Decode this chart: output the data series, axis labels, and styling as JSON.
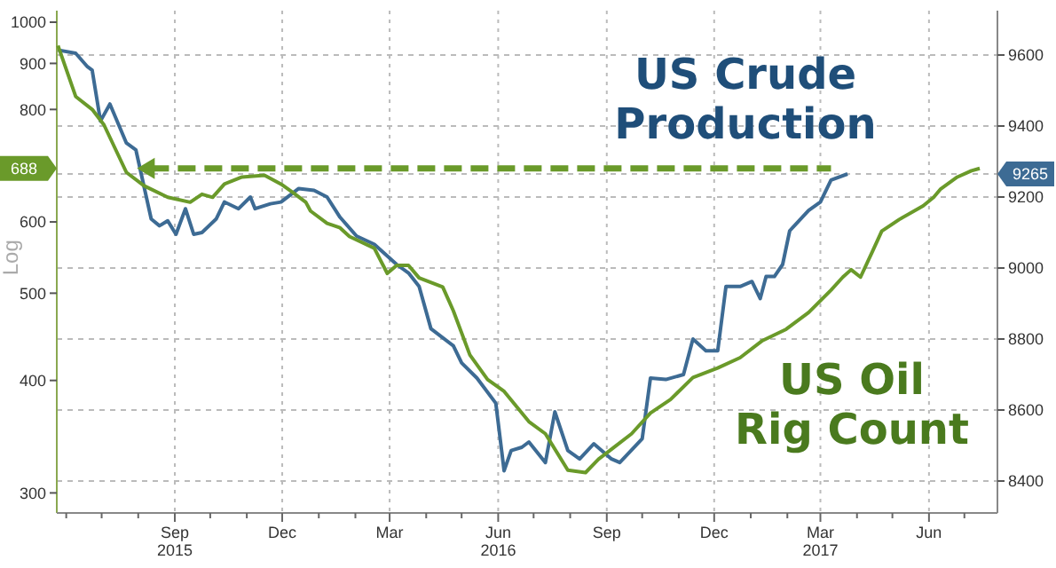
{
  "chart_data": {
    "type": "line",
    "log": "y",
    "grid": true,
    "ylabel": "Log",
    "xlim": [
      "2015-05-24",
      "2017-07-29"
    ],
    "ylim": [
      285,
      1030
    ],
    "y2lim": [
      8310,
      9725
    ],
    "yticks": [
      300,
      400,
      500,
      600,
      688,
      800,
      900,
      1000
    ],
    "y2ticks": [
      8400,
      8600,
      8800,
      9000,
      9200,
      9265,
      9400,
      9600
    ],
    "xticks": [
      {
        "value": "2015-06-01",
        "label": null
      },
      {
        "value": "2015-07-01",
        "label": null
      },
      {
        "value": "2015-08-01",
        "label": null
      },
      {
        "value": "2015-09-01",
        "label": "Sep\n2015"
      },
      {
        "value": "2015-10-01",
        "label": null
      },
      {
        "value": "2015-11-01",
        "label": null
      },
      {
        "value": "2015-12-01",
        "label": "Dec"
      },
      {
        "value": "2016-01-01",
        "label": null
      },
      {
        "value": "2016-02-01",
        "label": null
      },
      {
        "value": "2016-03-01",
        "label": "Mar"
      },
      {
        "value": "2016-04-01",
        "label": null
      },
      {
        "value": "2016-05-01",
        "label": null
      },
      {
        "value": "2016-06-01",
        "label": "Jun\n2016"
      },
      {
        "value": "2016-07-01",
        "label": null
      },
      {
        "value": "2016-08-01",
        "label": null
      },
      {
        "value": "2016-09-01",
        "label": "Sep"
      },
      {
        "value": "2016-10-01",
        "label": null
      },
      {
        "value": "2016-11-01",
        "label": null
      },
      {
        "value": "2016-12-01",
        "label": "Dec"
      },
      {
        "value": "2017-01-01",
        "label": null
      },
      {
        "value": "2017-02-01",
        "label": null
      },
      {
        "value": "2017-03-01",
        "label": "Mar\n2017"
      },
      {
        "value": "2017-04-01",
        "label": null
      },
      {
        "value": "2017-05-01",
        "label": null
      },
      {
        "value": "2017-06-01",
        "label": "Jun"
      },
      {
        "value": "2017-07-01",
        "label": null
      }
    ],
    "series": [
      {
        "name": "US Crude Production",
        "color": "#3d6b94",
        "axis": "y2",
        "x": [
          "2015-05-25",
          "2015-06-09",
          "2015-06-19",
          "2015-06-23",
          "2015-06-30",
          "2015-07-08",
          "2015-07-22",
          "2015-07-30",
          "2015-08-12",
          "2015-08-19",
          "2015-08-26",
          "2015-09-02",
          "2015-09-10",
          "2015-09-17",
          "2015-09-24",
          "2015-10-06",
          "2015-10-13",
          "2015-10-25",
          "2015-11-04",
          "2015-11-08",
          "2015-11-21",
          "2015-11-30",
          "2015-12-15",
          "2015-12-28",
          "2016-01-08",
          "2016-01-19",
          "2016-02-02",
          "2016-02-17",
          "2016-03-07",
          "2016-03-17",
          "2016-03-26",
          "2016-04-05",
          "2016-04-24",
          "2016-05-01",
          "2016-05-14",
          "2016-05-30",
          "2016-06-06",
          "2016-06-12",
          "2016-06-21",
          "2016-06-27",
          "2016-07-11",
          "2016-07-19",
          "2016-07-30",
          "2016-08-09",
          "2016-08-21",
          "2016-09-05",
          "2016-09-12",
          "2016-10-01",
          "2016-10-08",
          "2016-10-21",
          "2016-11-05",
          "2016-11-13",
          "2016-11-24",
          "2016-12-04",
          "2016-12-11",
          "2016-12-23",
          "2017-01-02",
          "2017-01-09",
          "2017-01-14",
          "2017-01-21",
          "2017-01-28",
          "2017-02-03",
          "2017-02-19",
          "2017-03-01",
          "2017-03-10",
          "2017-03-24"
        ],
        "values": [
          9614,
          9605,
          9567,
          9557,
          9414,
          9462,
          9352,
          9333,
          9138,
          9119,
          9133,
          9095,
          9167,
          9095,
          9100,
          9138,
          9186,
          9167,
          9200,
          9167,
          9181,
          9186,
          9224,
          9219,
          9200,
          9143,
          9090,
          9067,
          9010,
          8986,
          8948,
          8829,
          8781,
          8733,
          8690,
          8619,
          8429,
          8486,
          8495,
          8510,
          8452,
          8595,
          8486,
          8462,
          8505,
          8462,
          8452,
          8519,
          8690,
          8686,
          8700,
          8800,
          8767,
          8767,
          8948,
          8948,
          8962,
          8914,
          8976,
          8976,
          9010,
          9105,
          9162,
          9186,
          9248,
          9265
        ]
      },
      {
        "name": "US Oil Rig Count",
        "color": "#6a9a2a",
        "axis": "y",
        "x": [
          "2015-05-25",
          "2015-06-09",
          "2015-06-23",
          "2015-07-03",
          "2015-07-22",
          "2015-08-06",
          "2015-08-26",
          "2015-09-14",
          "2015-09-24",
          "2015-10-03",
          "2015-10-13",
          "2015-10-28",
          "2015-11-16",
          "2015-11-30",
          "2015-12-10",
          "2015-12-21",
          "2015-12-25",
          "2016-01-08",
          "2016-01-19",
          "2016-01-27",
          "2016-02-17",
          "2016-02-28",
          "2016-03-07",
          "2016-03-17",
          "2016-03-26",
          "2016-04-15",
          "2016-04-24",
          "2016-05-08",
          "2016-05-23",
          "2016-06-06",
          "2016-06-27",
          "2016-07-11",
          "2016-07-30",
          "2016-08-14",
          "2016-08-25",
          "2016-09-07",
          "2016-09-22",
          "2016-10-08",
          "2016-10-25",
          "2016-11-13",
          "2016-12-04",
          "2016-12-23",
          "2017-01-11",
          "2017-01-31",
          "2017-02-19",
          "2017-03-10",
          "2017-03-20",
          "2017-03-27",
          "2017-04-04",
          "2017-04-14",
          "2017-04-22",
          "2017-05-07",
          "2017-05-27",
          "2017-06-05",
          "2017-06-11",
          "2017-06-25",
          "2017-07-07",
          "2017-07-14"
        ],
        "values": [
          942,
          827,
          800,
          769,
          681,
          658,
          639,
          631,
          644,
          639,
          661,
          673,
          676,
          661,
          647,
          631,
          617,
          598,
          591,
          578,
          561,
          526,
          537,
          537,
          520,
          508,
          478,
          427,
          401,
          389,
          360,
          349,
          318,
          316,
          327,
          337,
          349,
          368,
          381,
          403,
          413,
          424,
          443,
          456,
          476,
          504,
          521,
          531,
          521,
          556,
          586,
          604,
          625,
          639,
          653,
          673,
          684,
          688
        ]
      },
      {
        "color": "#6a9a2a",
        "axis": "y",
        "line_style": "dashed",
        "x": [
          "2015-08-12",
          "2017-03-10"
        ],
        "values": [
          688,
          688
        ]
      }
    ]
  }
}
